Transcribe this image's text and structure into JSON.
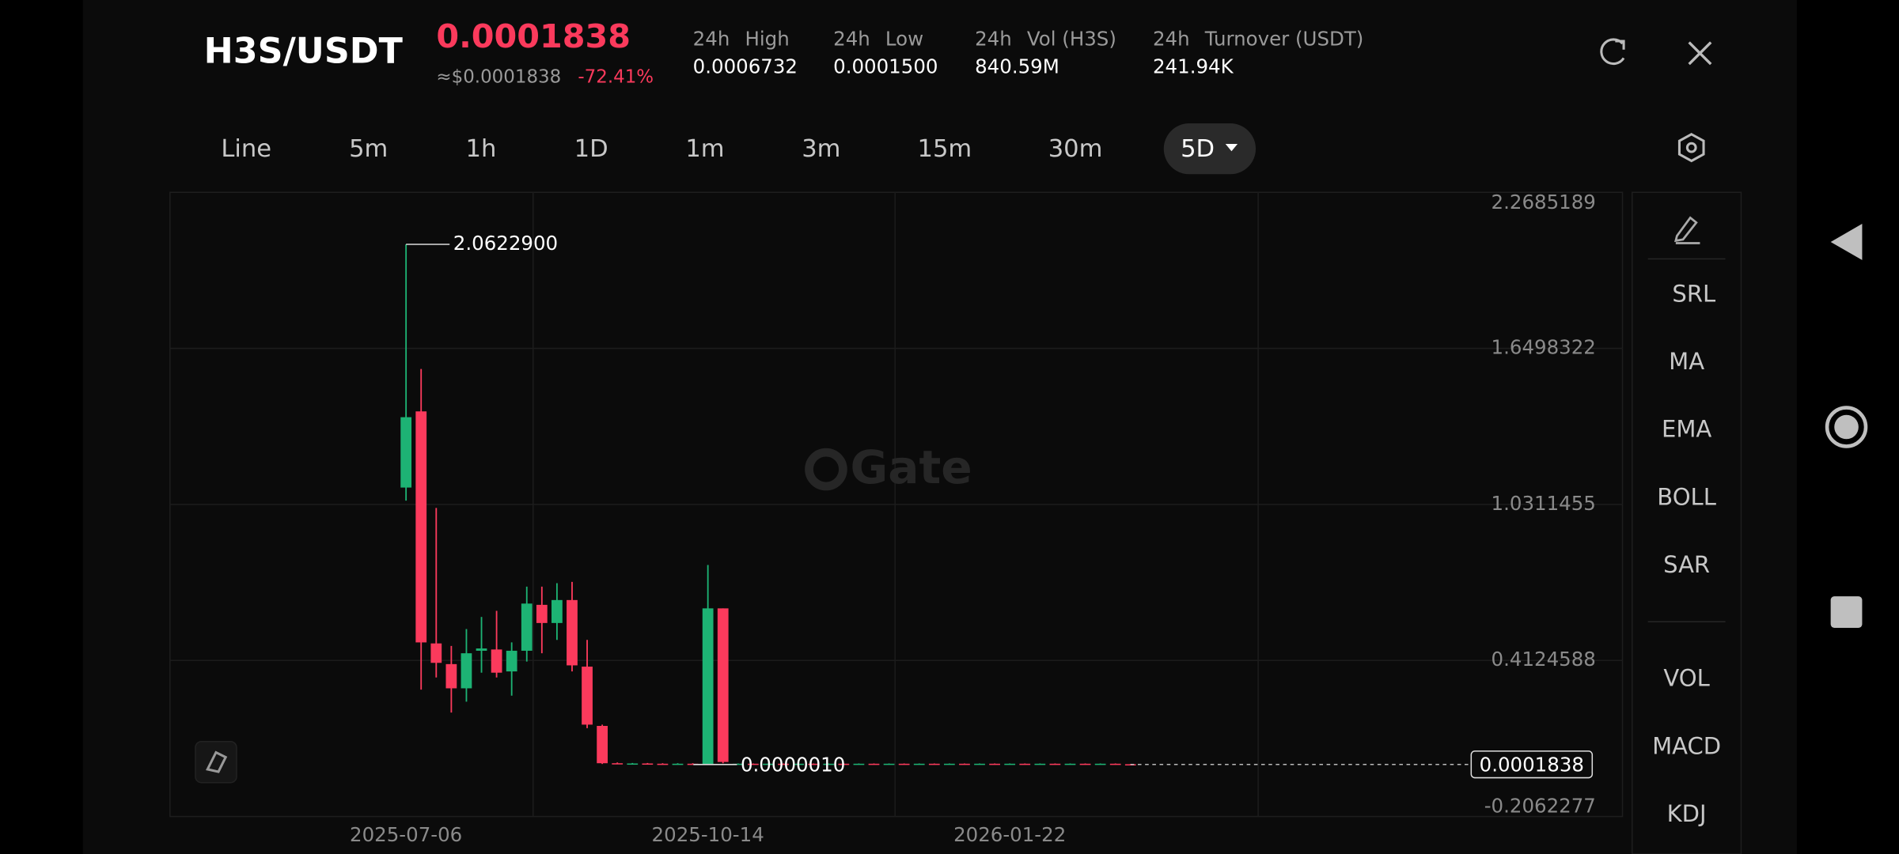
{
  "header": {
    "pair": "H3S/USDT",
    "price": "0.0001838",
    "usd_price": "≈$0.0001838",
    "change": "-72.41%",
    "stats": [
      {
        "period": "24h",
        "label": "High",
        "value": "0.0006732"
      },
      {
        "period": "24h",
        "label": "Low",
        "value": "0.0001500"
      },
      {
        "period": "24h",
        "label": "Vol (H3S)",
        "value": "840.59M"
      },
      {
        "period": "24h",
        "label": "Turnover (USDT)",
        "value": "241.94K"
      }
    ]
  },
  "tabs": [
    "Line",
    "5m",
    "1h",
    "1D",
    "1m",
    "3m",
    "15m",
    "30m",
    "5D"
  ],
  "sidebar": [
    "SRL",
    "MA",
    "EMA",
    "BOLL",
    "SAR",
    "VOL",
    "MACD",
    "KDJ"
  ],
  "watermark": "Gate",
  "chart_data": {
    "type": "candlestick",
    "categories": [
      "2025-07-06",
      null,
      null,
      null,
      null,
      null,
      null,
      null,
      null,
      null,
      null,
      null,
      null,
      null,
      null,
      null,
      null,
      null,
      null,
      null,
      "2025-10-14",
      null,
      null,
      null,
      null,
      null,
      null,
      null,
      null,
      null,
      null,
      null,
      null,
      null,
      null,
      null,
      null,
      null,
      null,
      null,
      "2026-01-22",
      null,
      null,
      null,
      null,
      null,
      null,
      null,
      null
    ],
    "open": [
      1.098,
      1.4,
      0.48,
      0.398,
      0.302,
      0.451,
      0.456,
      0.369,
      0.451,
      0.633,
      0.561,
      0.652,
      0.388,
      0.153,
      0.005,
      0.003,
      0.004,
      0.003,
      0.002,
      0.003,
      0.0002,
      0.619,
      0.002,
      0.003,
      0.002,
      0.003,
      0.002,
      0.003,
      0.002,
      0.003,
      0.002,
      0.003,
      0.002,
      0.003,
      0.002,
      0.003,
      0.002,
      0.003,
      0.002,
      0.003,
      0.002,
      0.003,
      0.002,
      0.003,
      0.002,
      0.003,
      0.002,
      0.003,
      0.001
    ],
    "high": [
      2.06229,
      1.568,
      1.017,
      0.47,
      0.537,
      0.585,
      0.609,
      0.484,
      0.705,
      0.705,
      0.719,
      0.724,
      0.494,
      0.158,
      0.008,
      0.006,
      0.006,
      0.005,
      0.005,
      0.005,
      0.791,
      0.619,
      0.004,
      0.004,
      0.004,
      0.004,
      0.004,
      0.004,
      0.004,
      0.004,
      0.004,
      0.004,
      0.004,
      0.004,
      0.004,
      0.004,
      0.004,
      0.004,
      0.004,
      0.004,
      0.004,
      0.004,
      0.004,
      0.004,
      0.004,
      0.004,
      0.004,
      0.004,
      0.002
    ],
    "low": [
      1.046,
      0.297,
      0.345,
      0.206,
      0.249,
      0.364,
      0.345,
      0.273,
      0.408,
      0.441,
      0.494,
      0.369,
      0.144,
      0.002,
      0.002,
      0.001,
      0.001,
      0.001,
      0.001,
      0.001,
      1e-06,
      0.005,
      0.001,
      0.001,
      0.001,
      0.001,
      0.001,
      0.001,
      0.001,
      0.001,
      0.001,
      0.001,
      0.001,
      0.001,
      0.001,
      0.001,
      0.001,
      0.001,
      0.001,
      0.001,
      0.001,
      0.001,
      0.001,
      0.001,
      0.001,
      0.001,
      0.001,
      0.001,
      0.0001
    ],
    "close": [
      1.377,
      0.484,
      0.403,
      0.302,
      0.441,
      0.46,
      0.364,
      0.451,
      0.638,
      0.561,
      0.652,
      0.393,
      0.158,
      0.005,
      0.003,
      0.004,
      0.002,
      0.002,
      0.003,
      0.002,
      0.619,
      0.01,
      0.003,
      0.002,
      0.003,
      0.002,
      0.003,
      0.002,
      0.003,
      0.002,
      0.003,
      0.002,
      0.003,
      0.002,
      0.003,
      0.002,
      0.003,
      0.002,
      0.003,
      0.002,
      0.003,
      0.002,
      0.003,
      0.002,
      0.003,
      0.002,
      0.003,
      0.002,
      0.0001838
    ],
    "up_color": "#1db374",
    "down_color": "#fb3a5c",
    "ylim": [
      -0.2062277,
      2.2685189
    ],
    "yticks": [
      -0.2062277,
      0.4124588,
      1.0311455,
      1.6498322,
      2.2685189
    ],
    "grid": true,
    "last_price": 0.0001838,
    "max_label": "2.0622900",
    "min_label": "0.0000010"
  }
}
